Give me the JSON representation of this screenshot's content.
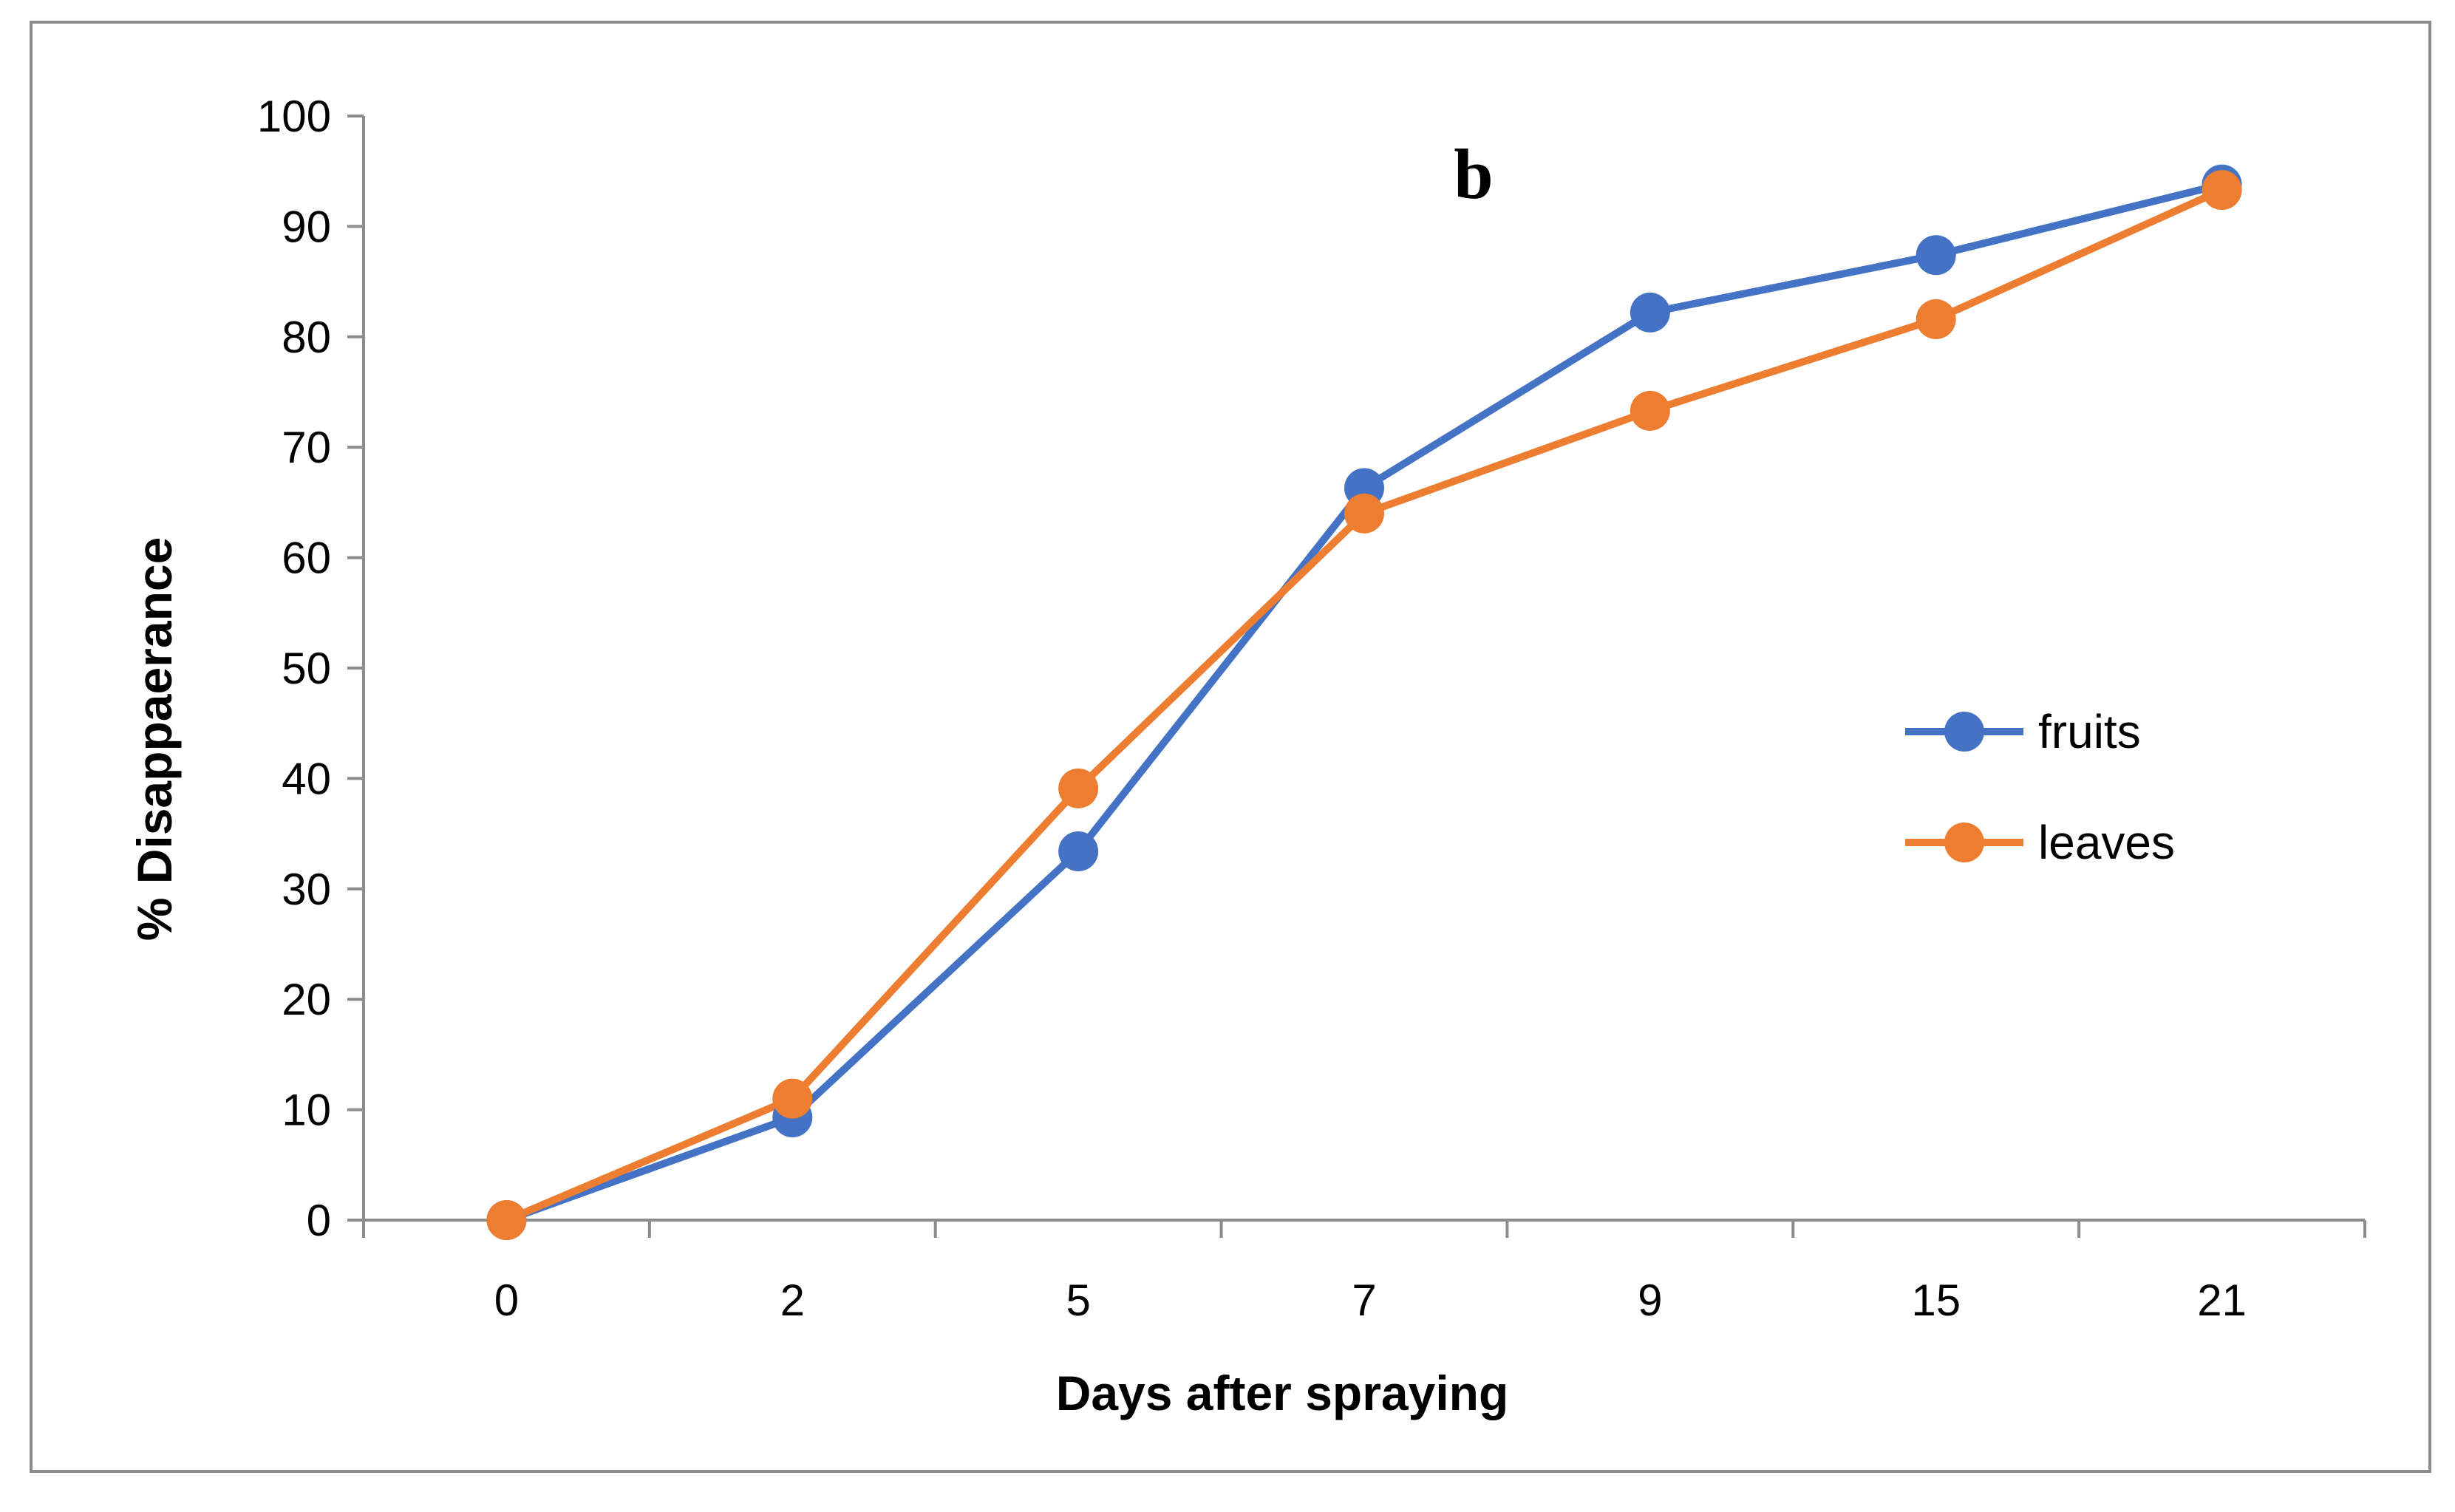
{
  "chart_data": {
    "type": "line",
    "title": "",
    "panel_label": "b",
    "xlabel": "Days after spraying",
    "ylabel": "% Disappaerance",
    "categories": [
      "0",
      "2",
      "5",
      "7",
      "9",
      "15",
      "21"
    ],
    "yticks": [
      "0",
      "10",
      "20",
      "30",
      "40",
      "50",
      "60",
      "70",
      "80",
      "90",
      "100"
    ],
    "ylim": [
      0,
      100
    ],
    "grid": false,
    "legend_position": "right",
    "series": [
      {
        "name": "fruits",
        "color": "#4472c4",
        "values": [
          0,
          9.3,
          33.4,
          66.3,
          82.2,
          87.4,
          93.8
        ]
      },
      {
        "name": "leaves",
        "color": "#ed7d31",
        "values": [
          0,
          11.0,
          39.1,
          64.0,
          73.3,
          81.6,
          93.3
        ]
      }
    ]
  }
}
